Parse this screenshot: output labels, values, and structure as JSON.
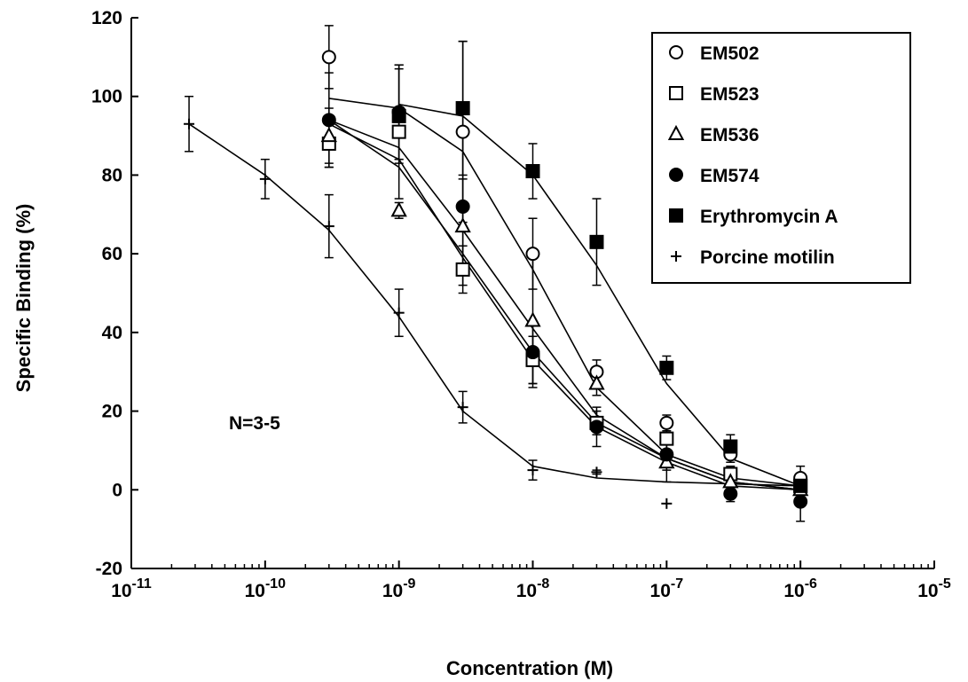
{
  "chart_data": {
    "type": "scatter",
    "title": "",
    "xlabel": "Concentration (M)",
    "ylabel": "Specific Binding (%)",
    "x_scale": "log",
    "xlim": [
      1e-11,
      1e-05
    ],
    "ylim": [
      -20,
      120
    ],
    "x_ticks": [
      1e-11,
      1e-10,
      1e-09,
      1e-08,
      1e-07,
      1e-06,
      1e-05
    ],
    "x_tick_labels": [
      {
        "base": "10",
        "exp": "-11"
      },
      {
        "base": "10",
        "exp": "-10"
      },
      {
        "base": "10",
        "exp": "-9"
      },
      {
        "base": "10",
        "exp": "-8"
      },
      {
        "base": "10",
        "exp": "-7"
      },
      {
        "base": "10",
        "exp": "-6"
      },
      {
        "base": "10",
        "exp": "-5"
      }
    ],
    "y_ticks": [
      -20,
      0,
      20,
      40,
      60,
      80,
      100,
      120
    ],
    "y_tick_labels": [
      "-20",
      "0",
      "20",
      "40",
      "60",
      "80",
      "100",
      "120"
    ],
    "grid": false,
    "legend_position": "top-right",
    "annotation": "N=3-5",
    "series": [
      {
        "name": "EM502",
        "marker": "open-circle",
        "points": [
          {
            "x": 3e-10,
            "y": 110,
            "err": 8
          },
          {
            "x": 1e-09,
            "y": 96,
            "err": 12
          },
          {
            "x": 3e-09,
            "y": 91,
            "err": 23
          },
          {
            "x": 1e-08,
            "y": 60,
            "err": 9
          },
          {
            "x": 3e-08,
            "y": 30,
            "err": 3
          },
          {
            "x": 1e-07,
            "y": 17,
            "err": 2
          },
          {
            "x": 3e-07,
            "y": 9,
            "err": 2
          },
          {
            "x": 1e-06,
            "y": 3,
            "err": 3
          }
        ],
        "fit": [
          {
            "x": 3e-10,
            "y": 99.5
          },
          {
            "x": 1e-09,
            "y": 97
          },
          {
            "x": 3e-09,
            "y": 86
          },
          {
            "x": 1e-08,
            "y": 56
          },
          {
            "x": 3e-08,
            "y": 26
          },
          {
            "x": 1e-07,
            "y": 9
          },
          {
            "x": 3e-07,
            "y": 3
          },
          {
            "x": 1e-06,
            "y": 1
          }
        ]
      },
      {
        "name": "EM523",
        "marker": "open-square",
        "points": [
          {
            "x": 3e-10,
            "y": 88,
            "err": 6
          },
          {
            "x": 1e-09,
            "y": 91,
            "err": 17
          },
          {
            "x": 3e-09,
            "y": 56,
            "err": 6
          },
          {
            "x": 1e-08,
            "y": 33,
            "err": 6
          },
          {
            "x": 3e-08,
            "y": 17,
            "err": 3
          },
          {
            "x": 1e-07,
            "y": 13,
            "err": 3
          },
          {
            "x": 3e-07,
            "y": 4,
            "err": 2
          },
          {
            "x": 1e-06,
            "y": 1,
            "err": 3
          }
        ],
        "fit": [
          {
            "x": 3e-10,
            "y": 93
          },
          {
            "x": 1e-09,
            "y": 84
          },
          {
            "x": 3e-09,
            "y": 59
          },
          {
            "x": 1e-08,
            "y": 33
          },
          {
            "x": 3e-08,
            "y": 16
          },
          {
            "x": 1e-07,
            "y": 7
          },
          {
            "x": 3e-07,
            "y": 1
          },
          {
            "x": 1e-06,
            "y": 0
          }
        ]
      },
      {
        "name": "EM536",
        "marker": "open-triangle",
        "points": [
          {
            "x": 3e-10,
            "y": 90,
            "err": 7
          },
          {
            "x": 1e-09,
            "y": 71,
            "err": 2
          },
          {
            "x": 3e-09,
            "y": 67,
            "err": 12
          },
          {
            "x": 1e-08,
            "y": 43,
            "err": 17
          },
          {
            "x": 3e-08,
            "y": 27,
            "err": 3
          },
          {
            "x": 1e-07,
            "y": 7,
            "err": 5
          },
          {
            "x": 3e-07,
            "y": 2,
            "err": 2
          },
          {
            "x": 1e-06,
            "y": 0,
            "err": 2
          }
        ],
        "fit": [
          {
            "x": 3e-10,
            "y": 94
          },
          {
            "x": 1e-09,
            "y": 87
          },
          {
            "x": 3e-09,
            "y": 66
          },
          {
            "x": 1e-08,
            "y": 41
          },
          {
            "x": 3e-08,
            "y": 19
          },
          {
            "x": 1e-07,
            "y": 8
          },
          {
            "x": 3e-07,
            "y": 2
          },
          {
            "x": 1e-06,
            "y": 0
          }
        ]
      },
      {
        "name": "EM574",
        "marker": "filled-circle",
        "points": [
          {
            "x": 3e-10,
            "y": 94,
            "err": 12
          },
          {
            "x": 1e-09,
            "y": 96,
            "err": 12
          },
          {
            "x": 3e-09,
            "y": 72,
            "err": 20
          },
          {
            "x": 1e-08,
            "y": 35,
            "err": 8
          },
          {
            "x": 3e-08,
            "y": 16,
            "err": 5
          },
          {
            "x": 1e-07,
            "y": 9,
            "err": 4
          },
          {
            "x": 3e-07,
            "y": -1,
            "err": 2
          },
          {
            "x": 1e-06,
            "y": -3,
            "err": 5
          }
        ],
        "fit": [
          {
            "x": 3e-10,
            "y": 94
          },
          {
            "x": 1e-09,
            "y": 82
          },
          {
            "x": 3e-09,
            "y": 60
          },
          {
            "x": 1e-08,
            "y": 35
          },
          {
            "x": 3e-08,
            "y": 17
          },
          {
            "x": 1e-07,
            "y": 8
          },
          {
            "x": 3e-07,
            "y": 2
          },
          {
            "x": 1e-06,
            "y": 0
          }
        ]
      },
      {
        "name": "Erythromycin A",
        "marker": "filled-square",
        "points": [
          {
            "x": 1e-09,
            "y": 95,
            "err": 12
          },
          {
            "x": 3e-09,
            "y": 97,
            "err": 17
          },
          {
            "x": 1e-08,
            "y": 81,
            "err": 7
          },
          {
            "x": 3e-08,
            "y": 63,
            "err": 11
          },
          {
            "x": 1e-07,
            "y": 31,
            "err": 3
          },
          {
            "x": 3e-07,
            "y": 11,
            "err": 3
          },
          {
            "x": 1e-06,
            "y": 1,
            "err": 3
          }
        ],
        "fit": [
          {
            "x": 1e-09,
            "y": 98
          },
          {
            "x": 3e-09,
            "y": 95
          },
          {
            "x": 1e-08,
            "y": 80
          },
          {
            "x": 3e-08,
            "y": 57
          },
          {
            "x": 1e-07,
            "y": 27
          },
          {
            "x": 3e-07,
            "y": 8
          },
          {
            "x": 1e-06,
            "y": 1
          }
        ]
      },
      {
        "name": "Porcine motilin",
        "marker": "plus",
        "points": [
          {
            "x": 2.7e-11,
            "y": 93,
            "err": 7
          },
          {
            "x": 1e-10,
            "y": 79,
            "err": 5
          },
          {
            "x": 3e-10,
            "y": 67,
            "err": 8
          },
          {
            "x": 1e-09,
            "y": 45,
            "err": 6
          },
          {
            "x": 3e-09,
            "y": 21,
            "err": 4
          },
          {
            "x": 1e-08,
            "y": 5,
            "err": 2.5
          },
          {
            "x": 3e-08,
            "y": 4.5,
            "err": 0.5
          },
          {
            "x": 1e-07,
            "y": -3.5,
            "err": 0
          }
        ],
        "fit": [
          {
            "x": 2.7e-11,
            "y": 93
          },
          {
            "x": 1e-10,
            "y": 80
          },
          {
            "x": 3e-10,
            "y": 66
          },
          {
            "x": 1e-09,
            "y": 44
          },
          {
            "x": 3e-09,
            "y": 20
          },
          {
            "x": 1e-08,
            "y": 6
          },
          {
            "x": 3e-08,
            "y": 3
          },
          {
            "x": 1e-07,
            "y": 2
          },
          {
            "x": 1e-06,
            "y": 1
          }
        ]
      }
    ]
  }
}
